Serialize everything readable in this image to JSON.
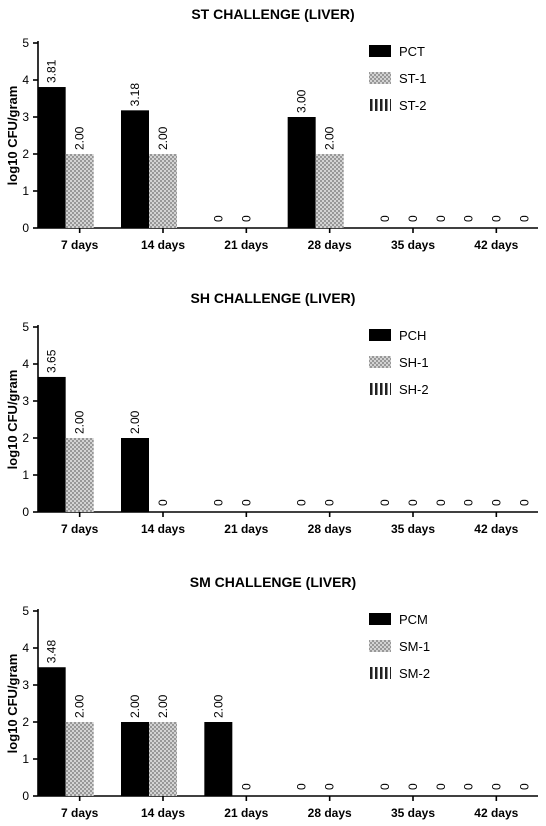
{
  "chart_data": [
    {
      "type": "bar",
      "title": "ST CHALLENGE (LIVER)",
      "ylabel": "log10 CFU/gram",
      "xlabel": "",
      "ylim": [
        0,
        5
      ],
      "yticks": [
        "0",
        "1",
        "2",
        "3",
        "4",
        "5"
      ],
      "categories": [
        "7 days",
        "14 days",
        "21 days",
        "28 days",
        "35 days",
        "42 days"
      ],
      "legend_position": "top-right",
      "series": [
        {
          "name": "PCT",
          "pattern": "solid",
          "values": [
            3.81,
            3.18,
            0,
            3.0,
            0,
            0
          ],
          "labels": [
            "3.81",
            "3.18",
            "0",
            "3.00",
            "0",
            "0"
          ]
        },
        {
          "name": "ST-1",
          "pattern": "dotted",
          "values": [
            2.0,
            2.0,
            0,
            2.0,
            0,
            0
          ],
          "labels": [
            "2.00",
            "2.00",
            "0",
            "2.00",
            "0",
            "0"
          ]
        },
        {
          "name": "ST-2",
          "pattern": "striped",
          "values": [
            null,
            null,
            null,
            null,
            0,
            0
          ],
          "labels": [
            "",
            "",
            "",
            "",
            "0",
            "0"
          ]
        }
      ]
    },
    {
      "type": "bar",
      "title": "SH CHALLENGE (LIVER)",
      "ylabel": "log10 CFU/gram",
      "xlabel": "",
      "ylim": [
        0,
        5
      ],
      "yticks": [
        "0",
        "1",
        "2",
        "3",
        "4",
        "5"
      ],
      "categories": [
        "7 days",
        "14 days",
        "21 days",
        "28 days",
        "35 days",
        "42 days"
      ],
      "legend_position": "top-right",
      "series": [
        {
          "name": "PCH",
          "pattern": "solid",
          "values": [
            3.65,
            2.0,
            0,
            0,
            0,
            0
          ],
          "labels": [
            "3.65",
            "2.00",
            "0",
            "0",
            "0",
            "0"
          ]
        },
        {
          "name": "SH-1",
          "pattern": "dotted",
          "values": [
            2.0,
            0,
            0,
            0,
            0,
            0
          ],
          "labels": [
            "2.00",
            "0",
            "0",
            "0",
            "0",
            "0"
          ]
        },
        {
          "name": "SH-2",
          "pattern": "striped",
          "values": [
            null,
            null,
            null,
            null,
            0,
            0
          ],
          "labels": [
            "",
            "",
            "",
            "",
            "0",
            "0"
          ]
        }
      ]
    },
    {
      "type": "bar",
      "title": "SM CHALLENGE (LIVER)",
      "ylabel": "log10 CFU/gram",
      "xlabel": "",
      "ylim": [
        0,
        5
      ],
      "yticks": [
        "0",
        "1",
        "2",
        "3",
        "4",
        "5"
      ],
      "categories": [
        "7 days",
        "14 days",
        "21 days",
        "28 days",
        "35 days",
        "42 days"
      ],
      "legend_position": "top-right",
      "series": [
        {
          "name": "PCM",
          "pattern": "solid",
          "values": [
            3.48,
            2.0,
            2.0,
            0,
            0,
            0
          ],
          "labels": [
            "3.48",
            "2.00",
            "2.00",
            "0",
            "0",
            "0"
          ]
        },
        {
          "name": "SM-1",
          "pattern": "dotted",
          "values": [
            2.0,
            2.0,
            0,
            0,
            0,
            0
          ],
          "labels": [
            "2.00",
            "2.00",
            "0",
            "0",
            "0",
            "0"
          ]
        },
        {
          "name": "SM-2",
          "pattern": "striped",
          "values": [
            null,
            null,
            null,
            null,
            0,
            0
          ],
          "labels": [
            "",
            "",
            "",
            "",
            "0",
            "0"
          ]
        }
      ]
    }
  ]
}
